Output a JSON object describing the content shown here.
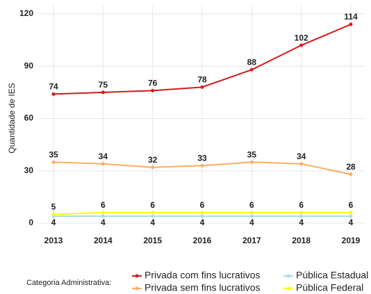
{
  "chart_data": {
    "type": "line",
    "y_label": "Quantidade de IES",
    "legend_title": "Categoria Administrativa:",
    "categories": [
      "2013",
      "2014",
      "2015",
      "2016",
      "2017",
      "2018",
      "2019"
    ],
    "series": [
      {
        "name": "Privada com fins lucrativos",
        "color": "#d7191c",
        "values": [
          74,
          75,
          76,
          78,
          88,
          102,
          114
        ]
      },
      {
        "name": "Privada sem fins lucrativos",
        "color": "#fdae61",
        "values": [
          35,
          34,
          32,
          33,
          35,
          34,
          28
        ]
      },
      {
        "name": "Pública Estadual",
        "color": "#abd9e9",
        "values": [
          4,
          4,
          4,
          4,
          4,
          4,
          4
        ]
      },
      {
        "name": "Pública Federal",
        "color": "#ffff00",
        "values": [
          5,
          6,
          6,
          6,
          6,
          6,
          6
        ]
      }
    ],
    "ylim": [
      0,
      120
    ],
    "yticks": [
      0,
      30,
      60,
      90,
      120
    ],
    "grid": true,
    "legend": "bottom"
  }
}
